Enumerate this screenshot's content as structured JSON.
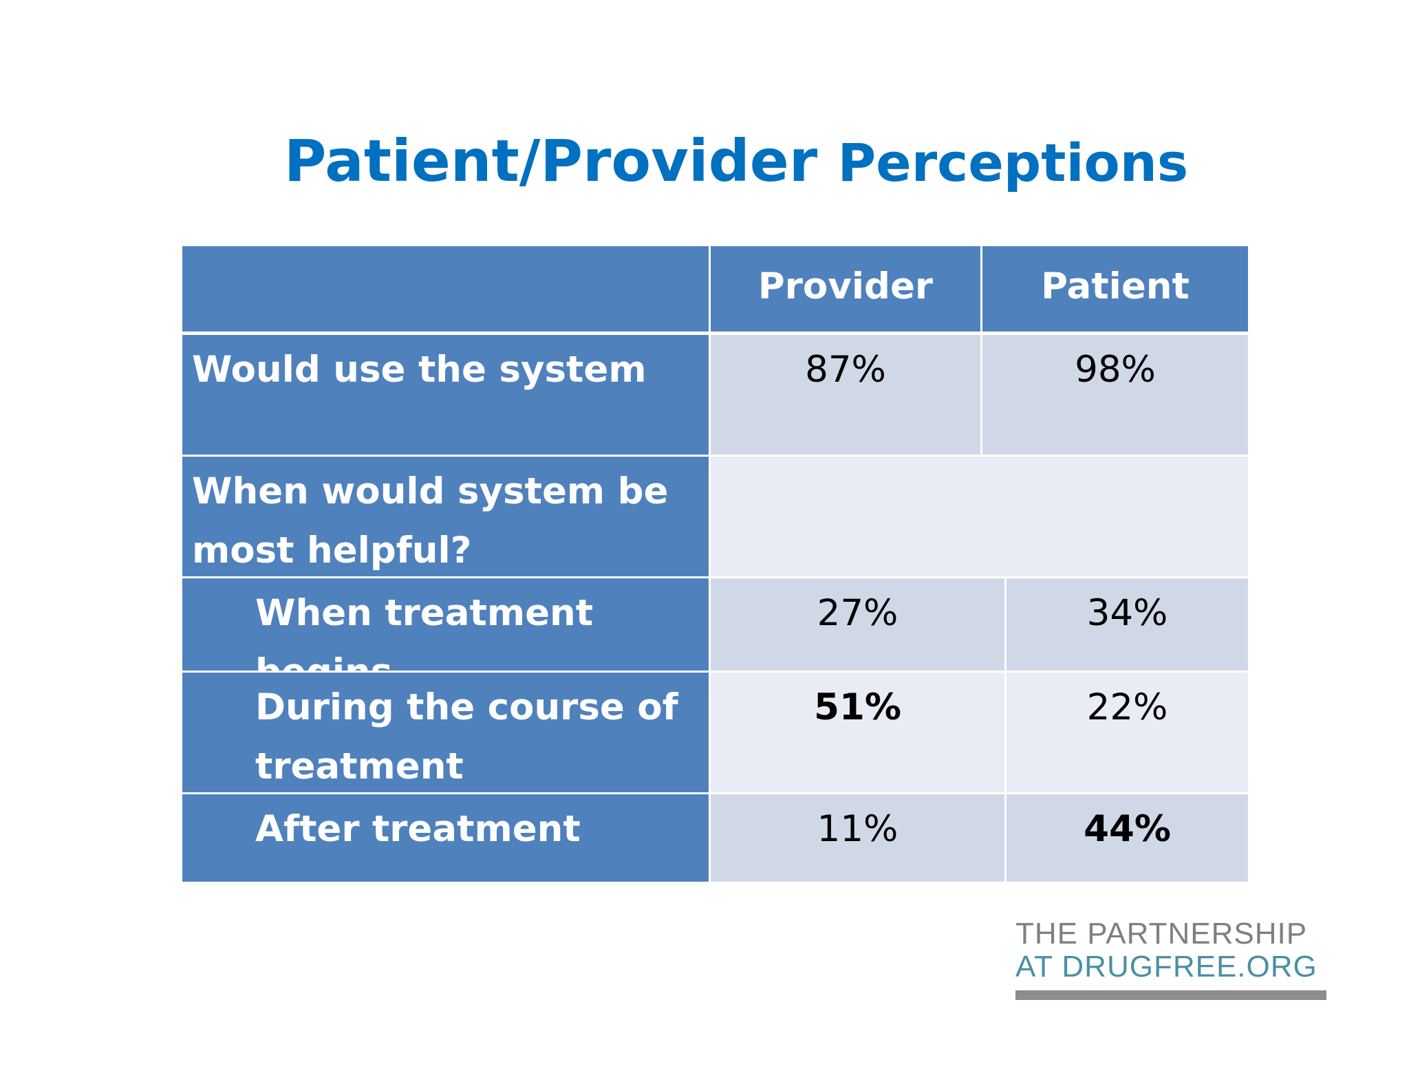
{
  "title": {
    "part1": "Patient/Provider",
    "part2": "Perceptions"
  },
  "table": {
    "headers": [
      "",
      "Provider",
      "Patient"
    ],
    "rows": [
      {
        "label": "Would use the system",
        "provider": "87%",
        "patient": "98%"
      },
      {
        "label": "When would system be most helpful?",
        "provider": "",
        "patient": ""
      },
      {
        "label": "When treatment begins",
        "provider": "27%",
        "patient": "34%"
      },
      {
        "label": "During the course of treatment",
        "provider": "51%",
        "patient": "22%"
      },
      {
        "label": "After treatment",
        "provider": "11%",
        "patient": "44%"
      }
    ],
    "label_lines": {
      "row2_line1": "When would system be",
      "row2_line2": "most helpful?",
      "row4_line1": "During the course of",
      "row4_line2": "treatment"
    },
    "bold_cells": [
      "row4.provider",
      "row5.patient"
    ],
    "colors": {
      "header_blue": "#4f81bd",
      "cell_dark": "#d0d8e8",
      "cell_light": "#e9ebf5",
      "title_blue": "#0070c0"
    }
  },
  "logo": {
    "line1": "THE PARTNERSHIP",
    "line2": "AT DRUGFREE.ORG"
  }
}
